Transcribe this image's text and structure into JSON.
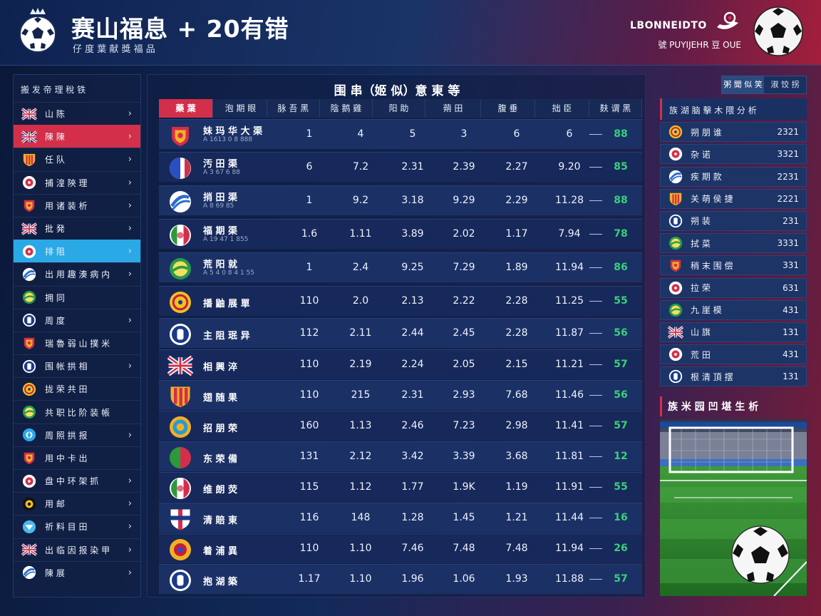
{
  "header": {
    "title": "赛山福息 + 20有错",
    "subtitle": "仔 度 葉 献 獎 福 品",
    "brand": "LBONNEIDTO",
    "brand_sub": "號 PUYIJEHR 豆 OUE"
  },
  "left_panel": {
    "title": "搬 发 帝 理 稅 铁",
    "items": [
      {
        "label": "山 陈",
        "flag": "uk",
        "chevron": "›",
        "state": ""
      },
      {
        "label": "陳 陳",
        "flag": "uk",
        "chevron": "›",
        "state": "red"
      },
      {
        "label": "任 队",
        "flag": "shield",
        "chevron": "›",
        "state": ""
      },
      {
        "label": "捕 湟 陝 理",
        "flag": "round-red",
        "chevron": "›",
        "state": ""
      },
      {
        "label": "用 诸 装 析",
        "flag": "crest-red",
        "chevron": "›",
        "state": ""
      },
      {
        "label": "批 発",
        "flag": "uk",
        "chevron": "›",
        "state": ""
      },
      {
        "label": "排 阻",
        "flag": "round-red",
        "chevron": "›",
        "state": "blue"
      },
      {
        "label": "出 用 趣 湊 病 内",
        "flag": "round-blue",
        "chevron": "›",
        "state": ""
      },
      {
        "label": "拥 同",
        "flag": "round-green",
        "chevron": "",
        "state": ""
      },
      {
        "label": "周 度",
        "flag": "round-navy",
        "chevron": "›",
        "state": ""
      },
      {
        "label": "瑞 魯 弱 山 撲 米",
        "flag": "crest-red",
        "chevron": "",
        "state": ""
      },
      {
        "label": "围 帐 拱 相",
        "flag": "round-navy",
        "chevron": "›",
        "state": ""
      },
      {
        "label": "拢 荣 共 田",
        "flag": "round-yellow",
        "chevron": "",
        "state": ""
      },
      {
        "label": "共 职 比 阶 装 帳",
        "flag": "round-green",
        "chevron": "",
        "state": ""
      },
      {
        "label": "周 照 拱 报",
        "flag": "round-cyan",
        "chevron": "›",
        "state": ""
      },
      {
        "label": "用 中 卡 出",
        "flag": "crest-red",
        "chevron": "",
        "state": ""
      },
      {
        "label": "盘 中 环 架 抓",
        "flag": "round-red",
        "chevron": "›",
        "state": ""
      },
      {
        "label": "用 邮",
        "flag": "round-black",
        "chevron": "›",
        "state": ""
      },
      {
        "label": "祈 料 目 田",
        "flag": "round-sky",
        "chevron": "›",
        "state": ""
      },
      {
        "label": "出 临 因 报 染 甲",
        "flag": "uk",
        "chevron": "›",
        "state": ""
      },
      {
        "label": "陳 展",
        "flag": "round-blue",
        "chevron": "›",
        "state": ""
      }
    ]
  },
  "table": {
    "title": "围 串（姬 似）意 東 等",
    "columns": [
      "藥 葉",
      "泡 期 眼",
      "脉 吾 黑",
      "陰 鹅 雞",
      "阳 助",
      "蒴 田",
      "腹 垂",
      "拙 臣",
      "麸 谓 黑"
    ],
    "rows": [
      {
        "team": "妹 玛 华 大 渠",
        "sub": "A 1613 0 8 888",
        "badge": "crest-red",
        "c1": "1",
        "c2": "4",
        "c3": "5",
        "c4": "3",
        "c5": "6",
        "c6": "6",
        "pct": "88"
      },
      {
        "team": "汚 田 渠",
        "sub": "A 3 67 6 88",
        "badge": "fr",
        "c1": "6",
        "c2": "7.2",
        "c3": "2.31",
        "c4": "2.39",
        "c5": "2.27",
        "c6": "9.20",
        "pct": "85"
      },
      {
        "team": "捎 田 渠",
        "sub": "A 8 69 85",
        "badge": "round-blue",
        "c1": "1",
        "c2": "9.2",
        "c3": "3.18",
        "c4": "9.29",
        "c5": "2.29",
        "c6": "11.28",
        "pct": "88"
      },
      {
        "team": "福 期 渠",
        "sub": "A 19 47 1 855",
        "badge": "it",
        "c1": "1.6",
        "c2": "1.11",
        "c3": "3.89",
        "c4": "2.02",
        "c5": "1.17",
        "c6": "7.94",
        "pct": "78"
      },
      {
        "team": "荒 阳 就",
        "sub": "A 5 4 0 8 4 1 55",
        "badge": "round-green",
        "c1": "1",
        "c2": "2.4",
        "c3": "9.25",
        "c4": "7.29",
        "c5": "1.89",
        "c6": "11.94",
        "pct": "86"
      },
      {
        "team": "播 鼬 展 單",
        "sub": "",
        "badge": "round-yellow",
        "c1": "110",
        "c2": "2.0",
        "c3": "2.13",
        "c4": "2.22",
        "c5": "2.28",
        "c6": "11.25",
        "pct": "55"
      },
      {
        "team": "主 阻 珉 异",
        "sub": "",
        "badge": "round-navy",
        "c1": "112",
        "c2": "2.11",
        "c3": "2.44",
        "c4": "2.45",
        "c5": "2.28",
        "c6": "11.87",
        "pct": "56"
      },
      {
        "team": "相 興 淬",
        "sub": "",
        "badge": "uk",
        "c1": "110",
        "c2": "2.19",
        "c3": "2.24",
        "c4": "2.05",
        "c5": "2.15",
        "c6": "11.21",
        "pct": "57"
      },
      {
        "team": "翅 随 果",
        "sub": "",
        "badge": "stripes",
        "c1": "110",
        "c2": "215",
        "c3": "2.31",
        "c4": "2.93",
        "c5": "7.68",
        "c6": "11.46",
        "pct": "56"
      },
      {
        "team": "招 朋 荣",
        "sub": "",
        "badge": "round-ring",
        "c1": "160",
        "c2": "1.13",
        "c3": "2.46",
        "c4": "7.23",
        "c5": "2.98",
        "c6": "11.41",
        "pct": "57"
      },
      {
        "team": "东 荣 備",
        "sub": "",
        "badge": "round-red-green",
        "c1": "131",
        "c2": "2.12",
        "c3": "3.42",
        "c4": "3.39",
        "c5": "3.68",
        "c6": "11.81",
        "pct": "12"
      },
      {
        "team": "维 朗 荧",
        "sub": "",
        "badge": "it",
        "c1": "115",
        "c2": "1.12",
        "c3": "1.77",
        "c4": "1.9K",
        "c5": "1.19",
        "c6": "11.91",
        "pct": "55"
      },
      {
        "team": "清 賠 東",
        "sub": "",
        "badge": "shield-cross",
        "c1": "116",
        "c2": "148",
        "c3": "1.28",
        "c4": "1.45",
        "c5": "1.21",
        "c6": "11.44",
        "pct": "16"
      },
      {
        "team": "着 浦 異",
        "sub": "",
        "badge": "crest-yellow",
        "c1": "110",
        "c2": "1.10",
        "c3": "7.46",
        "c4": "7.48",
        "c5": "7.48",
        "c6": "11.94",
        "pct": "26"
      },
      {
        "team": "抱 湖 築",
        "sub": "",
        "badge": "round-navy",
        "c1": "1.17",
        "c2": "1.10",
        "c3": "1.96",
        "c4": "1.06",
        "c5": "1.93",
        "c6": "11.88",
        "pct": "57"
      }
    ]
  },
  "right_panel": {
    "tabs": [
      "粥 聞 似 笑",
      "淑 饺 拐"
    ],
    "title": "族 湖 脑 擊 木 隈 分 析",
    "items": [
      {
        "label": "朔 朋 谁",
        "value": "2321",
        "badge": "round-yellow"
      },
      {
        "label": "杂 诺",
        "value": "3321",
        "badge": "round-red"
      },
      {
        "label": "疾 期 款",
        "value": "2231",
        "badge": "round-blue"
      },
      {
        "label": "关 萌 侯 捷",
        "value": "2221",
        "badge": "shield"
      },
      {
        "label": "朔 装",
        "value": "231",
        "badge": "round-navy"
      },
      {
        "label": "拭 菜",
        "value": "3331",
        "badge": "round-green"
      },
      {
        "label": "稍 末 围 偿",
        "value": "331",
        "badge": "crest-red"
      },
      {
        "label": "拉 荣",
        "value": "631",
        "badge": "round-red"
      },
      {
        "label": "九 崖 模",
        "value": "431",
        "badge": "round-green"
      },
      {
        "label": "山 旗",
        "value": "131",
        "badge": "uk"
      },
      {
        "label": "荒 田",
        "value": "431",
        "badge": "round-red"
      },
      {
        "label": "根 清 頂 摆",
        "value": "131",
        "badge": "round-navy"
      }
    ],
    "analysis_title": "族 米 园 凹 堪 生 析"
  },
  "colors": {
    "accent_red": "#d32f4a",
    "accent_blue": "#2aa9e6",
    "pct_green": "#38d07a",
    "panel": "#1b3166"
  }
}
